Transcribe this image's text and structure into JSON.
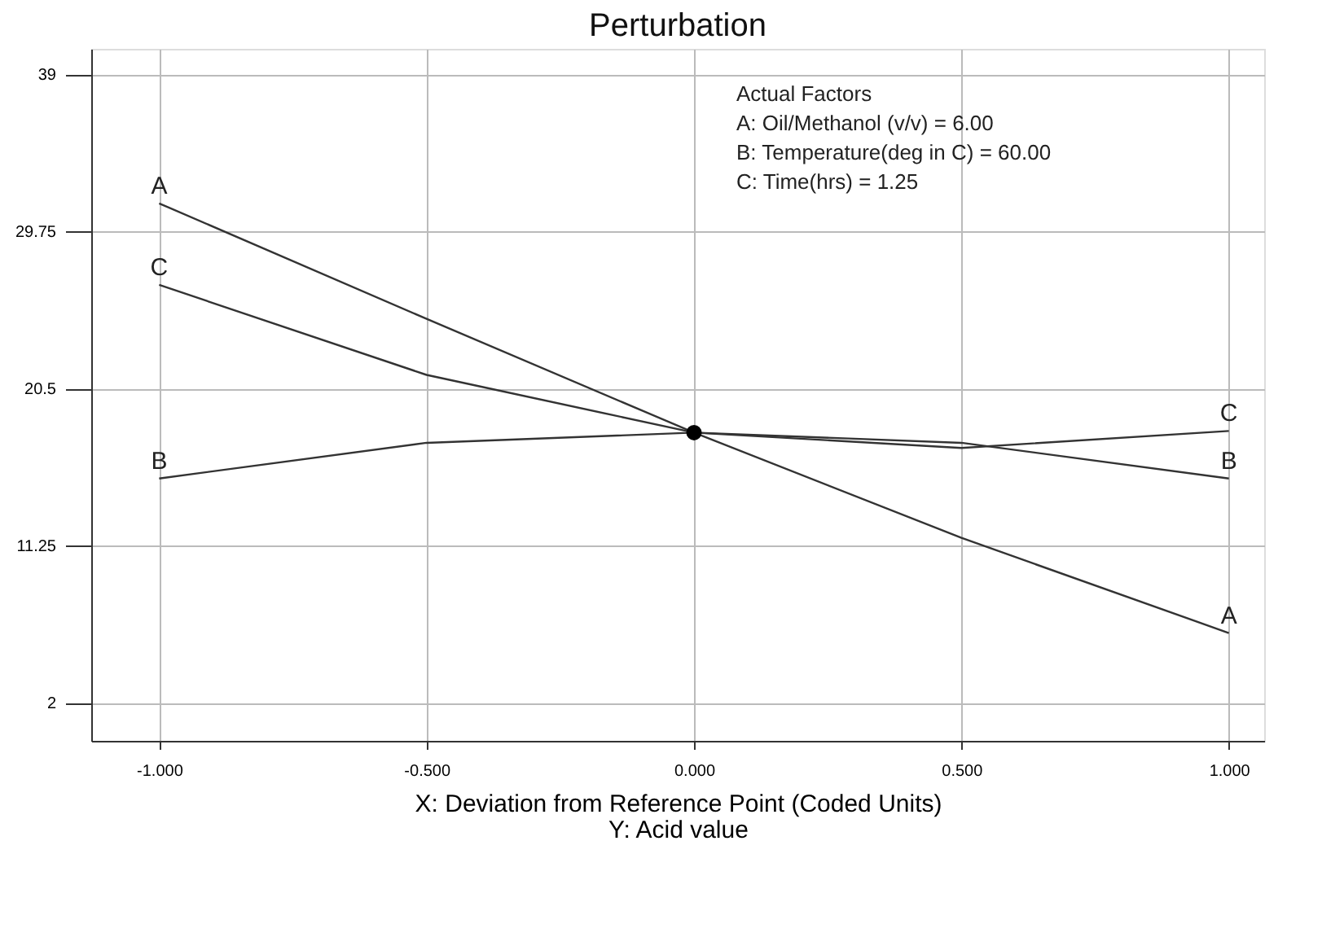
{
  "chart_data": {
    "type": "line",
    "title": "Perturbation",
    "xlabel": "X: Deviation from Reference Point (Coded Units)\nY: Acid value",
    "x": [
      -1,
      -0.5,
      0,
      0.5,
      1
    ],
    "series": [
      {
        "name": "A",
        "color": "#333333",
        "values": [
          31.4,
          24.6,
          17.9,
          11.7,
          6.1
        ]
      },
      {
        "name": "B",
        "color": "#333333",
        "values": [
          15.2,
          17.3,
          17.9,
          17.3,
          15.2
        ]
      },
      {
        "name": "C",
        "color": "#333333",
        "values": [
          26.6,
          21.3,
          17.9,
          17.0,
          18.0
        ]
      },
      {
        "type": "scatter",
        "color": "#000000",
        "marker": "circle",
        "x": [
          0
        ],
        "values": [
          17.9
        ]
      }
    ],
    "marker": "none",
    "line_style": "solid",
    "grid": true,
    "xlim": [
      -1.127,
      1.066
    ],
    "ylim": [
      -0.25,
      40.5
    ],
    "xticks": [
      {
        "value": -1,
        "label": "-1.000"
      },
      {
        "value": -0.5,
        "label": "-0.500"
      },
      {
        "value": 0,
        "label": "0.000"
      },
      {
        "value": 0.5,
        "label": "0.500"
      },
      {
        "value": 1,
        "label": "1.000"
      }
    ],
    "yticks": [
      2,
      11.25,
      20.5,
      29.75,
      39
    ],
    "annotations": [
      "Actual Factors",
      "A: Oil/Methanol (v/v) = 6.00",
      "B: Temperature(deg in C) = 60.00",
      "C: Time(hrs) = 1.25"
    ]
  }
}
